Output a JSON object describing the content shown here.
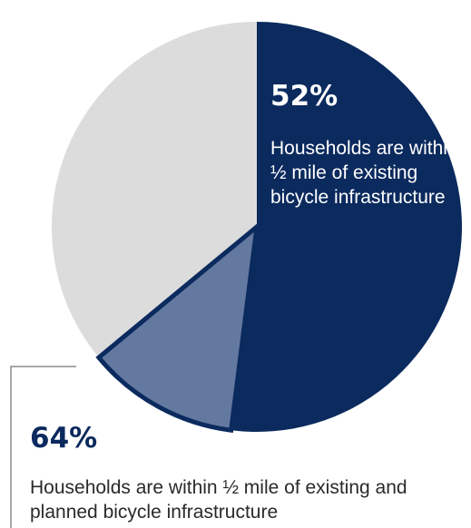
{
  "chart_data": {
    "type": "pie",
    "title": "",
    "slices": [
      {
        "value": 52,
        "color": "#0b2a5e",
        "label": "52%",
        "description": "Households are within ½ mile of existing bicycle infrastructure"
      },
      {
        "value": 12,
        "color": "#6479a0",
        "label": "",
        "description": ""
      },
      {
        "value": 36,
        "color": "#dcdcdc",
        "label": "",
        "description": ""
      }
    ],
    "combined_callout": {
      "value": 64,
      "label": "64%",
      "description": "Households are within ½ mile of existing and planned bicycle infrastructure",
      "color": "#0b2a5e"
    },
    "start_angle_deg": 0,
    "direction": "clockwise"
  }
}
